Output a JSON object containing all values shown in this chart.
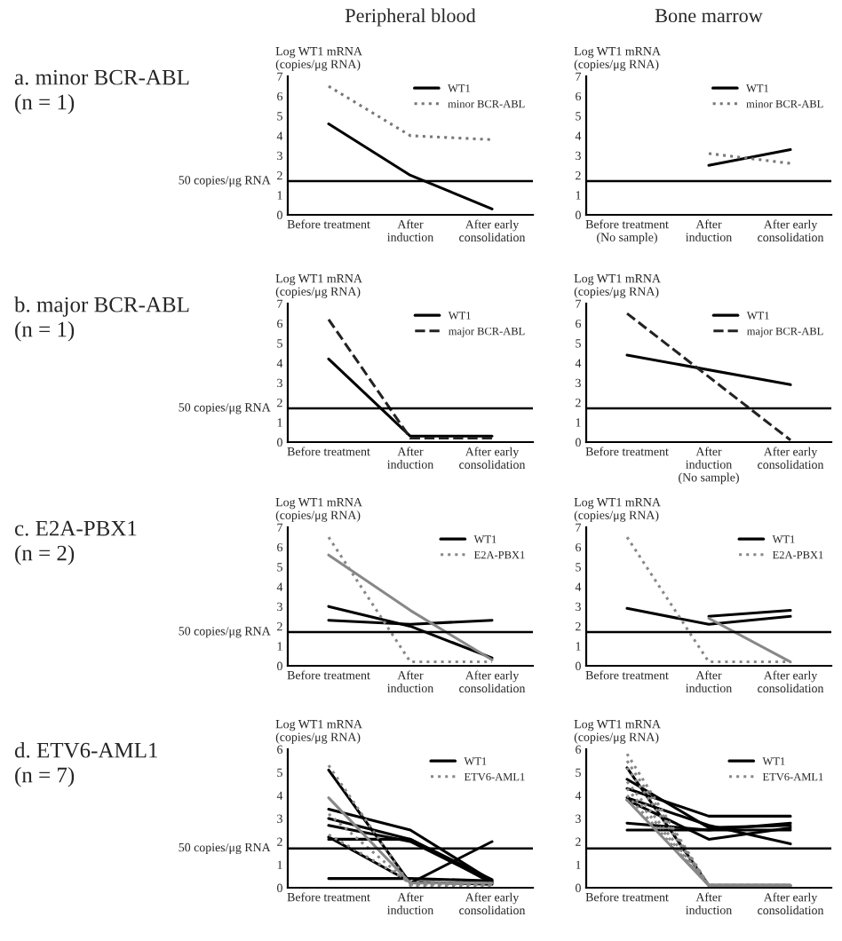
{
  "chart_data": [
    {
      "type": "line",
      "title": "Peripheral blood",
      "ylabel": "Log WT1 mRNA\n(copies/μg RNA)",
      "annotations": [
        "a. minor BCR-ABL\n(n = 1)"
      ],
      "categories": [
        "Before treatment",
        "After\ninduction",
        "After early\nconsolidation"
      ],
      "ylim": [
        0,
        7
      ],
      "yticks": [
        0,
        1,
        2,
        3,
        4,
        5,
        6,
        7
      ],
      "legend": "top right",
      "ref_lines": [
        {
          "axis": "y",
          "value": 1.7,
          "label": "50 copies/μg RNA"
        }
      ],
      "series": [
        {
          "name": "WT1",
          "color": "#000000",
          "line_style": "solid",
          "values": [
            4.6,
            2.0,
            0.3
          ]
        },
        {
          "name": "minor BCR-ABL",
          "color": "#777777",
          "line_style": "dotted",
          "values": [
            6.5,
            4.0,
            3.8
          ]
        }
      ]
    },
    {
      "type": "line",
      "title": "Bone marrow",
      "ylabel": "Log WT1 mRNA\n(copies/μg RNA)",
      "categories": [
        "Before treatment\n(No sample)",
        "After\ninduction",
        "After early\nconsolidation"
      ],
      "ylim": [
        0,
        7
      ],
      "yticks": [
        0,
        1,
        2,
        3,
        4,
        5,
        6,
        7
      ],
      "legend": "top right",
      "ref_lines": [
        {
          "axis": "y",
          "value": 1.7
        }
      ],
      "series": [
        {
          "name": "WT1",
          "color": "#000000",
          "line_style": "solid",
          "values": [
            null,
            2.5,
            3.3
          ]
        },
        {
          "name": "minor BCR-ABL",
          "color": "#777777",
          "line_style": "dotted",
          "values": [
            null,
            3.1,
            2.6
          ]
        }
      ]
    },
    {
      "type": "line",
      "ylabel": "Log WT1 mRNA\n(copies/μg RNA)",
      "annotations": [
        "b. major BCR-ABL\n(n = 1)"
      ],
      "categories": [
        "Before treatment",
        "After\ninduction",
        "After early\nconsolidation"
      ],
      "ylim": [
        0,
        7
      ],
      "yticks": [
        0,
        1,
        2,
        3,
        4,
        5,
        6,
        7
      ],
      "legend": "top right",
      "ref_lines": [
        {
          "axis": "y",
          "value": 1.7,
          "label": "50 copies/μg RNA"
        }
      ],
      "series": [
        {
          "name": "WT1",
          "color": "#000000",
          "line_style": "solid",
          "values": [
            4.2,
            0.3,
            0.3
          ]
        },
        {
          "name": "major BCR-ABL",
          "color": "#222222",
          "line_style": "dashed",
          "values": [
            6.2,
            0.2,
            0.2
          ]
        }
      ]
    },
    {
      "type": "line",
      "ylabel": "Log WT1 mRNA\n(copies/μg RNA)",
      "categories": [
        "Before treatment",
        "After\ninduction\n(No sample)",
        "After early\nconsolidation"
      ],
      "ylim": [
        0,
        7
      ],
      "yticks": [
        0,
        1,
        2,
        3,
        4,
        5,
        6,
        7
      ],
      "legend": "top right",
      "ref_lines": [
        {
          "axis": "y",
          "value": 1.7
        }
      ],
      "series": [
        {
          "name": "WT1",
          "color": "#000000",
          "line_style": "solid",
          "values": [
            4.4,
            null,
            2.9
          ]
        },
        {
          "name": "major BCR-ABL",
          "color": "#222222",
          "line_style": "dashed",
          "values": [
            6.5,
            null,
            0.1
          ]
        }
      ]
    },
    {
      "type": "line",
      "ylabel": "Log WT1 mRNA\n(copies/μg RNA)",
      "annotations": [
        "c. E2A-PBX1\n(n = 2)"
      ],
      "categories": [
        "Before treatment",
        "After\ninduction",
        "After early\nconsolidation"
      ],
      "ylim": [
        0,
        7
      ],
      "yticks": [
        0,
        1,
        2,
        3,
        4,
        5,
        6,
        7
      ],
      "legend": "top right",
      "ref_lines": [
        {
          "axis": "y",
          "value": 1.7,
          "label": "50 copies/μg RNA"
        }
      ],
      "series": [
        {
          "name": "WT1",
          "color": "#000000",
          "line_style": "solid",
          "values": [
            3.0,
            2.0,
            0.4
          ]
        },
        {
          "color": "#000000",
          "line_style": "solid",
          "values": [
            2.3,
            2.1,
            2.3
          ]
        },
        {
          "name": "E2A-PBX1",
          "color": "#888888",
          "line_style": "dotted",
          "values": [
            6.5,
            0.2,
            0.2
          ]
        },
        {
          "color": "#888888",
          "line_style": "solid",
          "values": [
            5.6,
            2.8,
            0.3
          ]
        }
      ]
    },
    {
      "type": "line",
      "ylabel": "Log WT1 mRNA\n(copies/μg RNA)",
      "categories": [
        "Before treatment",
        "After\ninduction",
        "After early\nconsolidation"
      ],
      "ylim": [
        0,
        7
      ],
      "yticks": [
        0,
        1,
        2,
        3,
        4,
        5,
        6,
        7
      ],
      "legend": "top right",
      "ref_lines": [
        {
          "axis": "y",
          "value": 1.7
        }
      ],
      "series": [
        {
          "name": "WT1",
          "color": "#000000",
          "line_style": "solid",
          "values": [
            2.9,
            2.1,
            2.5
          ]
        },
        {
          "color": "#000000",
          "line_style": "solid",
          "values": [
            null,
            2.5,
            2.8
          ]
        },
        {
          "name": "E2A-PBX1",
          "color": "#888888",
          "line_style": "dotted",
          "values": [
            6.5,
            0.2,
            0.2
          ]
        },
        {
          "color": "#888888",
          "line_style": "solid",
          "values": [
            null,
            2.4,
            0.2
          ]
        }
      ]
    },
    {
      "type": "line",
      "ylabel": "Log WT1 mRNA\n(copies/μg RNA)",
      "annotations": [
        "d. ETV6-AML1\n(n = 7)"
      ],
      "categories": [
        "Before treatment",
        "After\ninduction",
        "After early\nconsolidation"
      ],
      "ylim": [
        0,
        6
      ],
      "yticks": [
        0,
        1,
        2,
        3,
        4,
        5,
        6
      ],
      "legend": "top right",
      "ref_lines": [
        {
          "axis": "y",
          "value": 1.7,
          "label": "50 copies/μg RNA"
        }
      ],
      "series": [
        {
          "name": "WT1",
          "color": "#000000",
          "line_style": "solid",
          "values": [
            3.4,
            2.5,
            0.3
          ]
        },
        {
          "color": "#000000",
          "line_style": "solid",
          "values": [
            3.0,
            2.1,
            0.35
          ]
        },
        {
          "color": "#000000",
          "line_style": "solid",
          "values": [
            2.7,
            2.0,
            0.25
          ]
        },
        {
          "color": "#000000",
          "line_style": "solid",
          "values": [
            5.1,
            0.2,
            2.0
          ]
        },
        {
          "color": "#000000",
          "line_style": "solid",
          "values": [
            0.4,
            0.4,
            0.3
          ]
        },
        {
          "color": "#000000",
          "line_style": "solid",
          "values": [
            2.1,
            2.1,
            0.2
          ]
        },
        {
          "color": "#000000",
          "line_style": "solid",
          "values": [
            2.2,
            0.25,
            0.15
          ]
        },
        {
          "name": "ETV6-AML1",
          "color": "#888888",
          "line_style": "dotted",
          "values": [
            5.3,
            0.1,
            0.1
          ]
        },
        {
          "color": "#888888",
          "line_style": "solid",
          "values": [
            3.9,
            0.2,
            0.2
          ]
        },
        {
          "color": "#888888",
          "line_style": "dotted",
          "values": [
            3.2,
            0.15,
            0.15
          ]
        },
        {
          "color": "#888888",
          "line_style": "dotted",
          "values": [
            2.3,
            0.25,
            0.2
          ]
        }
      ]
    },
    {
      "type": "line",
      "ylabel": "Log WT1 mRNA\n(copies/μg RNA)",
      "categories": [
        "Before treatment",
        "After\ninduction",
        "After early\nconsolidation"
      ],
      "ylim": [
        0,
        6
      ],
      "yticks": [
        0,
        1,
        2,
        3,
        4,
        5,
        6
      ],
      "legend": "top right",
      "ref_lines": [
        {
          "axis": "y",
          "value": 1.7
        }
      ],
      "series": [
        {
          "name": "WT1",
          "color": "#000000",
          "line_style": "solid",
          "values": [
            4.7,
            2.6,
            2.7
          ]
        },
        {
          "color": "#000000",
          "line_style": "solid",
          "values": [
            4.3,
            3.1,
            3.1
          ]
        },
        {
          "color": "#000000",
          "line_style": "solid",
          "values": [
            3.9,
            2.7,
            1.9
          ]
        },
        {
          "color": "#000000",
          "line_style": "solid",
          "values": [
            3.8,
            2.1,
            2.6
          ]
        },
        {
          "color": "#000000",
          "line_style": "solid",
          "values": [
            2.8,
            2.5,
            2.5
          ]
        },
        {
          "color": "#000000",
          "line_style": "solid",
          "values": [
            2.5,
            2.5,
            2.8
          ]
        },
        {
          "color": "#000000",
          "line_style": "solid",
          "values": [
            5.2,
            0.1,
            0.1
          ]
        },
        {
          "name": "ETV6-AML1",
          "color": "#888888",
          "line_style": "dotted",
          "values": [
            5.8,
            0.1,
            0.1
          ]
        },
        {
          "color": "#888888",
          "line_style": "dotted",
          "values": [
            5.5,
            0.1,
            0.1
          ]
        },
        {
          "color": "#888888",
          "line_style": "dotted",
          "values": [
            5.2,
            0.1,
            0.1
          ]
        },
        {
          "color": "#888888",
          "line_style": "solid",
          "values": [
            3.8,
            0.1,
            0.1
          ]
        },
        {
          "color": "#888888",
          "line_style": "dotted",
          "values": [
            4.6,
            0.1,
            0.1
          ]
        },
        {
          "color": "#888888",
          "line_style": "dotted",
          "values": [
            4.0,
            0.1,
            0.1
          ]
        },
        {
          "color": "#888888",
          "line_style": "dotted",
          "values": [
            4.3,
            0.1,
            0.1
          ]
        }
      ]
    }
  ]
}
